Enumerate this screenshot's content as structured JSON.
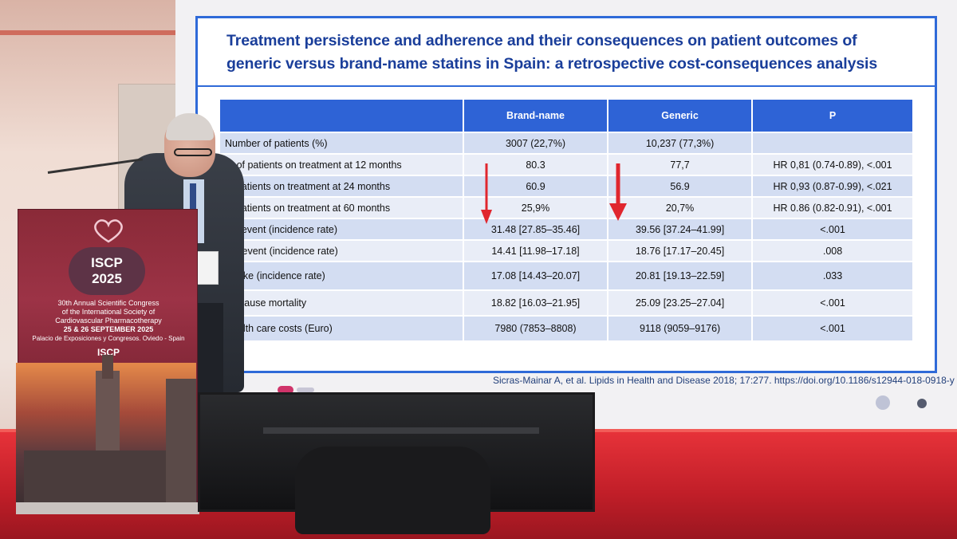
{
  "slide": {
    "title_line1": "Treatment persistence and adherence and their consequences on patient outcomes of",
    "title_line2": "generic versus brand-name statins in Spain: a retrospective cost-consequences analysis",
    "table": {
      "headers": [
        "",
        "Brand-name",
        "Generic",
        "P"
      ],
      "rows": [
        [
          "Number of patients (%)",
          "3007 (22,7%)",
          "10,237 (77,3%)",
          ""
        ],
        [
          "% of patients on treatment at 12 months",
          "80.3",
          "77,7",
          "HR 0,81 (0.74-0.89), <.001"
        ],
        [
          "of patients on treatment at 24 months",
          "60.9",
          "56.9",
          "HR 0,93 (0.87-0.99), <.021"
        ],
        [
          "of patients on treatment at 60 months",
          "25,9%",
          "20,7%",
          "HR 0.86 (0.82-0.91), <.001"
        ],
        [
          "CV event (incidence rate)",
          "31.48 [27.85–35.46]",
          "39.56 [37.24–41.99]",
          "<.001"
        ],
        [
          "HD event (incidence rate)",
          "14.41 [11.98–17.18]",
          "18.76 [17.17–20.45]",
          ".008"
        ],
        [
          "Stroke (incidence rate)",
          "17.08 [14.43–20.07]",
          "20.81 [19.13–22.59]",
          ".033"
        ],
        [
          "All-cause mortality",
          "18.82 [16.03–21.95]",
          "25.09 [23.25–27.04]",
          "<.001"
        ],
        [
          "Health care costs (Euro)",
          "7980 (7853–8808)",
          "9118 (9059–9176)",
          "<.001"
        ]
      ]
    },
    "citation": "Sicras-Mainar A, et al. Lipids in Health and Disease 2018; 17:277. https://doi.org/10.1186/s12944-018-0918-y"
  },
  "podium": {
    "logo_line1": "ISCP",
    "logo_line2": "2025",
    "congress_line1": "30th Annual Scientific Congress",
    "congress_line2": "of the International Society of",
    "congress_line3": "Cardiovascular Pharmacotherapy",
    "dates": "25 & 26 SEPTEMBER 2025",
    "venue": "Palacio de Exposiciones y Congresos. Oviedo - Spain",
    "small_logo": "ISCP"
  },
  "colors": {
    "slide_title": "#1a3e9a",
    "table_header": "#2e63d6",
    "arrow": "#e0262e",
    "stage": "#d62a33"
  }
}
